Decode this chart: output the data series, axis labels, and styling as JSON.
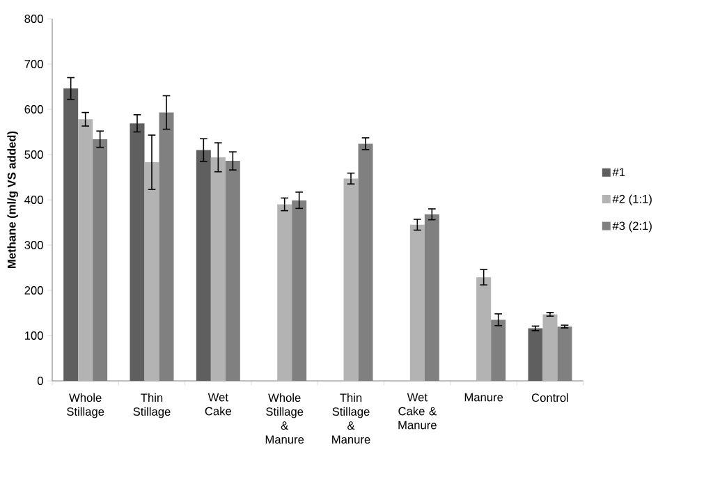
{
  "chart_data": {
    "type": "bar",
    "ylabel": "Methane (ml/g VS added)",
    "categories": [
      "Whole Stillage",
      "Thin Stillage",
      "Wet Cake",
      "Whole Stillage & Manure",
      "Thin Stillage & Manure",
      "Wet Cake & Manure",
      "Manure",
      "Control"
    ],
    "series": [
      {
        "name": "#1",
        "color": "#5f5f5f",
        "values": [
          646,
          569,
          510,
          null,
          null,
          null,
          null,
          116
        ],
        "errors": [
          24,
          19,
          25,
          null,
          null,
          null,
          null,
          5
        ]
      },
      {
        "name": "#2 (1:1)",
        "color": "#b3b3b3",
        "values": [
          578,
          483,
          494,
          390,
          447,
          345,
          229,
          147
        ],
        "errors": [
          15,
          60,
          32,
          14,
          12,
          12,
          17,
          4
        ]
      },
      {
        "name": "#3 (2:1)",
        "color": "#808080",
        "values": [
          534,
          593,
          486,
          399,
          524,
          368,
          135,
          120
        ],
        "errors": [
          18,
          37,
          20,
          18,
          13,
          12,
          13,
          3
        ]
      }
    ],
    "ylim": [
      0,
      800
    ],
    "yticks": [
      0,
      100,
      200,
      300,
      400,
      500,
      600,
      700,
      800
    ],
    "legend": "right",
    "grid": false
  }
}
